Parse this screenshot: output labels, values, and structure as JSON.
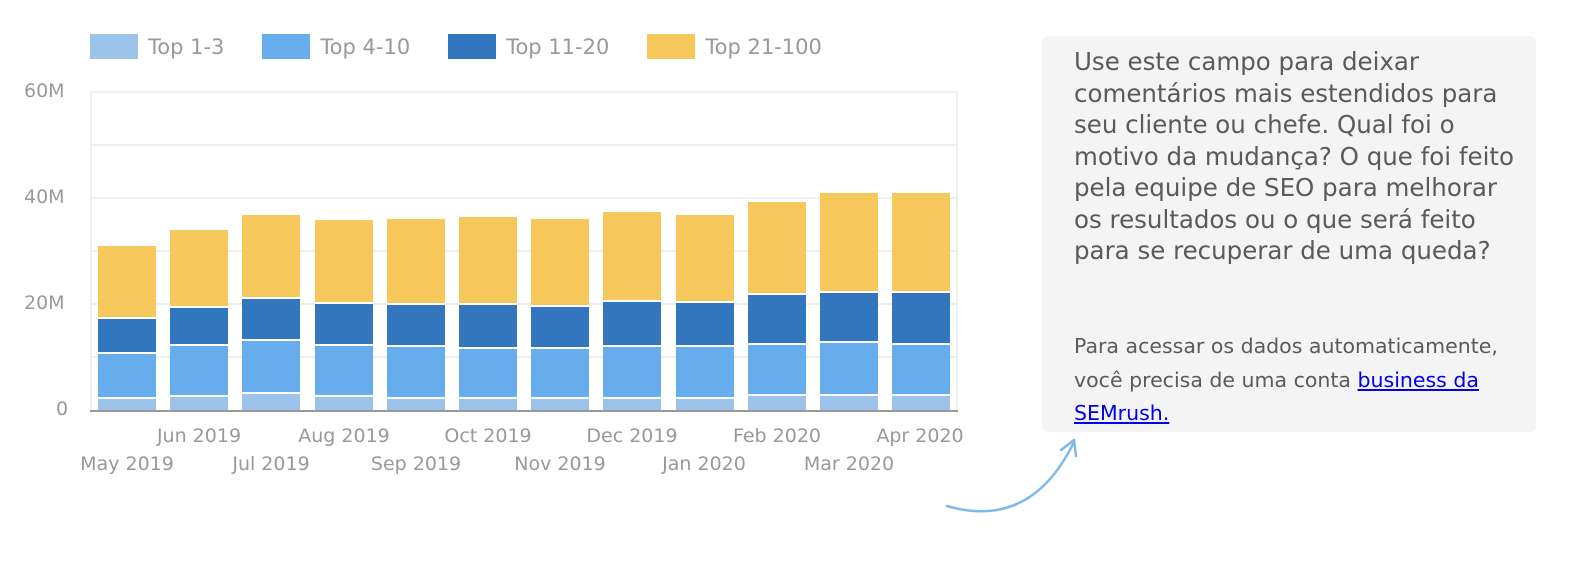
{
  "legend": [
    {
      "label": "Top 1-3",
      "color": "#9cc4eb"
    },
    {
      "label": "Top 4-10",
      "color": "#67acec"
    },
    {
      "label": "Top 11-20",
      "color": "#3276bd"
    },
    {
      "label": "Top 21-100",
      "color": "#f6c85b"
    }
  ],
  "y_axis": {
    "ticks": [
      "60M",
      "40M",
      "20M",
      "0"
    ]
  },
  "x_axis": {
    "upper_row": [
      "Jun 2019",
      "Aug 2019",
      "Oct 2019",
      "Dec 2019",
      "Feb 2020",
      "Apr 2020"
    ],
    "lower_row": [
      "May 2019",
      "Jul 2019",
      "Sep 2019",
      "Nov 2019",
      "Jan 2020",
      "Mar 2020"
    ]
  },
  "note": {
    "main_text": "Use este campo para deixar comentários mais estendidos para seu cliente ou chefe. Qual foi o motivo da mudança? O que foi feito pela equipe de SEO para melhorar os resultados ou o que será feito para se recuperar de uma queda?",
    "sub_text": "Para acessar os dados automaticamente, você precisa de uma conta ",
    "link_text": "business da SEMrush."
  },
  "chart_data": {
    "type": "bar",
    "stacked": true,
    "title": "",
    "xlabel": "",
    "ylabel": "",
    "ylim": [
      0,
      60000000
    ],
    "y_ticks": [
      "0",
      "20M",
      "40M",
      "60M"
    ],
    "grid": true,
    "legend_position": "top",
    "categories": [
      "May 2019",
      "Jun 2019",
      "Jul 2019",
      "Aug 2019",
      "Sep 2019",
      "Oct 2019",
      "Nov 2019",
      "Dec 2019",
      "Jan 2020",
      "Feb 2020",
      "Mar 2020",
      "Apr 2020"
    ],
    "series": [
      {
        "name": "Top 1-3",
        "color": "#9cc4eb",
        "values": [
          2.6,
          3.1,
          3.5,
          3.1,
          2.6,
          2.6,
          2.6,
          2.6,
          2.6,
          3.2,
          3.2,
          3.2
        ]
      },
      {
        "name": "Top 4-10",
        "color": "#67acec",
        "values": [
          8.6,
          9.6,
          10.1,
          9.6,
          9.9,
          9.4,
          9.4,
          9.9,
          9.8,
          9.6,
          10.1,
          9.6
        ]
      },
      {
        "name": "Top 11-20",
        "color": "#3276bd",
        "values": [
          6.6,
          7.1,
          7.9,
          7.9,
          7.9,
          8.3,
          8.0,
          8.4,
          8.4,
          9.4,
          9.4,
          9.8
        ]
      },
      {
        "name": "Top 21-100",
        "color": "#f6c85b",
        "values": [
          13.7,
          14.7,
          15.9,
          15.9,
          16.2,
          16.6,
          16.6,
          17.1,
          16.6,
          17.6,
          18.8,
          18.9
        ]
      }
    ],
    "totals_approx": [
      31.5,
      34.5,
      37.4,
      36.5,
      36.6,
      36.9,
      36.6,
      38.0,
      37.4,
      39.8,
      41.5,
      41.5
    ],
    "unit": "millions"
  }
}
